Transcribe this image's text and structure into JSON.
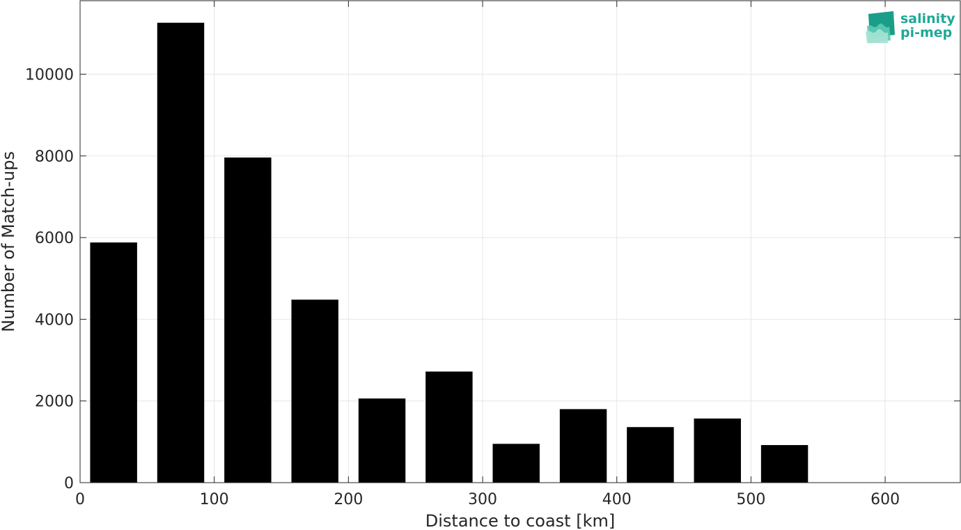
{
  "chart_data": {
    "type": "bar",
    "x": [
      25,
      75,
      125,
      175,
      225,
      275,
      325,
      375,
      425,
      475,
      525,
      575,
      625
    ],
    "values": [
      5880,
      11260,
      7960,
      4480,
      2060,
      2720,
      950,
      1800,
      1360,
      1570,
      920,
      0,
      0
    ],
    "xlabel": "Distance to coast [km]",
    "ylabel": "Number of Match-ups",
    "xlim": [
      0,
      656
    ],
    "ylim": [
      0,
      11800
    ],
    "xticks": [
      0,
      100,
      200,
      300,
      400,
      500,
      600
    ],
    "yticks": [
      0,
      2000,
      4000,
      6000,
      8000,
      10000
    ],
    "xtick_labels": [
      "0",
      "100",
      "200",
      "300",
      "400",
      "500",
      "600"
    ],
    "ytick_labels": [
      "0",
      "2000",
      "4000",
      "6000",
      "8000",
      "10000"
    ],
    "grid": true,
    "bar_color": "#000000"
  },
  "logo": {
    "line1": "salinity",
    "line2": "pi-mep",
    "color": "#1fa894"
  }
}
